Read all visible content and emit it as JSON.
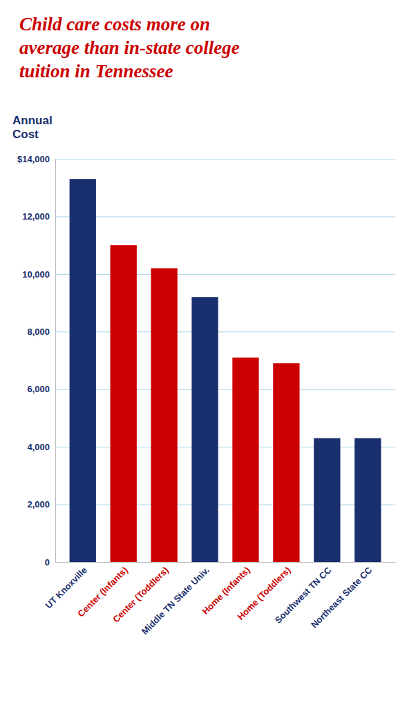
{
  "chart_data": {
    "type": "bar",
    "title": "Child care costs more on\naverage than in-state college\ntuition in Tennessee",
    "y_label": "Annual\nCost",
    "categories": [
      "UT Knoxville",
      "Center (Infants)",
      "Center (Toddlers)",
      "Middle TN State Univ.",
      "Home (Infants)",
      "Home (Toddlers)",
      "Southwest TN CC",
      "Northeast State CC"
    ],
    "values": [
      13300,
      11000,
      10200,
      9200,
      7100,
      6900,
      4300,
      4300
    ],
    "colors": [
      "#1a2f6e",
      "#CC0000",
      "#CC0000",
      "#1a2f6e",
      "#CC0000",
      "#CC0000",
      "#1a2f6e",
      "#1a2f6e"
    ],
    "ylim": [
      0,
      14000
    ],
    "yticks": [
      0,
      {
        "value": 2000,
        "label": "2,000"
      },
      {
        "value": 4000,
        "label": "4,000"
      },
      {
        "value": 6000,
        "label": "6,000"
      },
      {
        "value": 8000,
        "label": "8,000"
      },
      {
        "value": 10000,
        "label": "10,000"
      },
      {
        "value": 12000,
        "label": "12,000"
      },
      {
        "value": 14000,
        "label": "$14,000"
      }
    ],
    "grid": true
  }
}
